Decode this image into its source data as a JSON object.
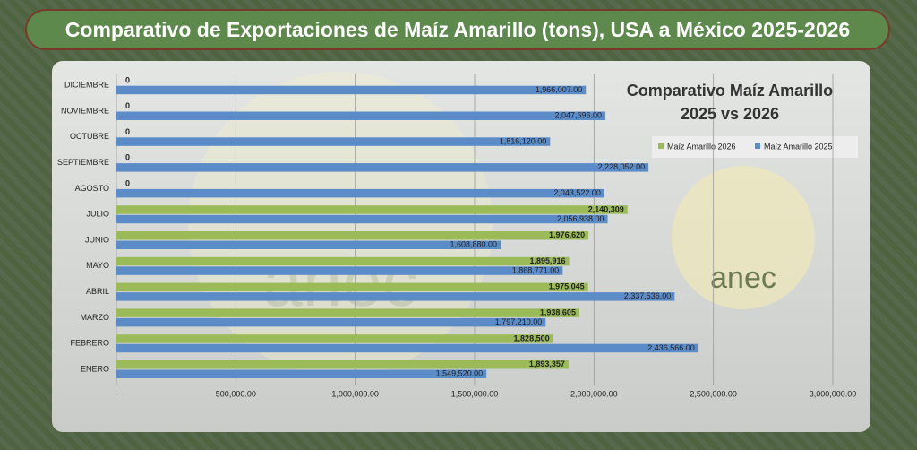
{
  "header": {
    "title": "Comparativo de Exportaciones de Maíz Amarillo (tons), USA a México 2025-2026"
  },
  "logo_text": "anec",
  "chart_data": {
    "type": "hbar",
    "title": "Comparativo Maíz Amarillo 2025 vs 2026",
    "categories": [
      "ENERO",
      "FEBRERO",
      "MARZO",
      "ABRIL",
      "MAYO",
      "JUNIO",
      "JULIO",
      "AGOSTO",
      "SEPTIEMBRE",
      "OCTUBRE",
      "NOVIEMBRE",
      "DICIEMBRE"
    ],
    "series": [
      {
        "name": "Maíz Amarillo 2026",
        "color": "#9bbb59",
        "values": [
          1893357,
          1828500,
          1938605,
          1975045,
          1895916,
          1976620,
          2140309,
          0,
          0,
          0,
          0,
          0
        ],
        "value_labels": [
          "1,893,357",
          "1,828,500",
          "1,938,605",
          "1,975,045",
          "1,895,916",
          "1,976,620",
          "2,140,309",
          "0",
          "0",
          "0",
          "0",
          "0"
        ]
      },
      {
        "name": "Maíz Amarillo 2025",
        "color": "#5b8cc8",
        "values": [
          1549520,
          2436566,
          1797210,
          2337536,
          1868771,
          1608880,
          2056938,
          2043522,
          2228052,
          1816120,
          2047696,
          1966007
        ],
        "value_labels": [
          "1,549,520.00",
          "2,436,566.00",
          "1,797,210.00",
          "2,337,536.00",
          "1,868,771.00",
          "1,608,880.00",
          "2,056,938.00",
          "2,043,522.00",
          "2,228,052.00",
          "1,816,120.00",
          "2,047,696.00",
          "1,966,007.00"
        ]
      }
    ],
    "xlim": [
      0,
      3000000
    ],
    "xticks": [
      {
        "value": 0,
        "label": "-"
      },
      {
        "value": 500000,
        "label": "500,000.00"
      },
      {
        "value": 1000000,
        "label": "1,000,000.00"
      },
      {
        "value": 1500000,
        "label": "1,500,000.00"
      },
      {
        "value": 2000000,
        "label": "2,000,000.00"
      },
      {
        "value": 2500000,
        "label": "2,500,000.00"
      },
      {
        "value": 3000000,
        "label": "3,000,000.00"
      }
    ],
    "grid": true,
    "legend": "right"
  }
}
